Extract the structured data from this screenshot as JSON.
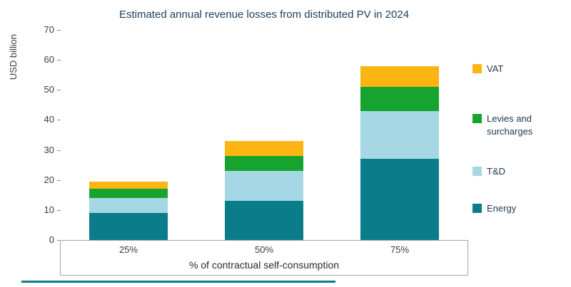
{
  "chart_data": {
    "type": "bar",
    "stacked": true,
    "title": "Estimated annual revenue losses from distributed PV in 2024",
    "ylabel": "USD billion",
    "xlabel": "% of contractual self-consumption",
    "ylim": [
      0,
      70
    ],
    "yticks": [
      0,
      10,
      20,
      30,
      40,
      50,
      60,
      70
    ],
    "grid": false,
    "legend_position": "right",
    "categories": [
      "25%",
      "50%",
      "75%"
    ],
    "series": [
      {
        "name": "Energy",
        "color": "#0b7d8a",
        "values": [
          9,
          13,
          27
        ]
      },
      {
        "name": "T&D",
        "color": "#a5d8e4",
        "values": [
          5,
          10,
          16
        ]
      },
      {
        "name": "Levies and surcharges",
        "color": "#16a32e",
        "values": [
          3,
          5,
          8
        ]
      },
      {
        "name": "VAT",
        "color": "#fdb514",
        "values": [
          2.5,
          5,
          7
        ]
      }
    ],
    "totals": [
      19.5,
      33,
      58
    ],
    "legend": [
      {
        "label": "VAT",
        "color": "#fdb514"
      },
      {
        "label": "Levies and surcharges",
        "color": "#16a32e"
      },
      {
        "label": "T&D",
        "color": "#a5d8e4"
      },
      {
        "label": "Energy",
        "color": "#0b7d8a"
      }
    ]
  }
}
